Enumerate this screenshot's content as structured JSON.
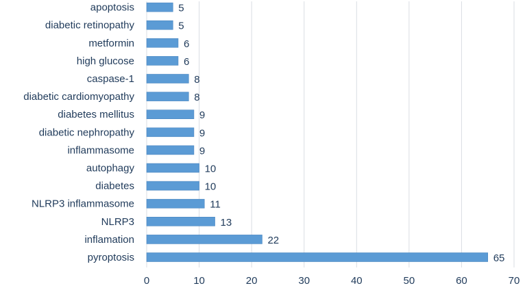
{
  "chart_data": {
    "type": "bar",
    "orientation": "horizontal",
    "title": "",
    "xlabel": "",
    "ylabel": "",
    "categories": [
      "pyroptosis",
      "inflamation",
      "NLRP3",
      "NLRP3 inflammasome",
      "diabetes",
      "autophagy",
      "inflammasome",
      "diabetic nephropathy",
      "diabetes mellitus",
      "diabetic cardiomyopathy",
      "caspase-1",
      "high glucose",
      "metformin",
      "diabetic retinopathy",
      "apoptosis"
    ],
    "values": [
      65,
      22,
      13,
      11,
      10,
      10,
      9,
      9,
      9,
      8,
      8,
      6,
      6,
      5,
      5
    ],
    "xlim": [
      0,
      70
    ],
    "xticks": [
      0,
      10,
      20,
      30,
      40,
      50,
      60,
      70
    ],
    "grid": "vertical",
    "legend": "none",
    "colors": {
      "bar_fill": "#5b9bd5",
      "bar_edge": "#4a86c0",
      "text": "#1f3a5a",
      "grid": "#d9dde3"
    }
  }
}
